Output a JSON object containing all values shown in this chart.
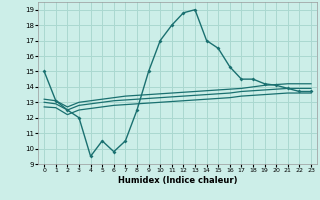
{
  "x": [
    0,
    1,
    2,
    3,
    4,
    5,
    6,
    7,
    8,
    9,
    10,
    11,
    12,
    13,
    14,
    15,
    16,
    17,
    18,
    19,
    20,
    21,
    22,
    23
  ],
  "line_main": [
    15,
    13.1,
    12.5,
    12.0,
    9.5,
    10.5,
    9.8,
    10.5,
    12.5,
    15.0,
    17.0,
    18.0,
    18.8,
    19.0,
    17.0,
    16.5,
    15.3,
    14.5,
    14.5,
    14.2,
    14.1,
    13.9,
    13.7,
    13.7
  ],
  "line_hi": [
    13.2,
    13.1,
    12.7,
    13.0,
    13.1,
    13.2,
    13.3,
    13.4,
    13.45,
    13.5,
    13.55,
    13.6,
    13.65,
    13.7,
    13.75,
    13.8,
    13.85,
    13.9,
    14.0,
    14.1,
    14.15,
    14.2,
    14.2,
    14.2
  ],
  "line_mid": [
    13.0,
    12.9,
    12.5,
    12.8,
    12.9,
    13.0,
    13.1,
    13.15,
    13.2,
    13.25,
    13.3,
    13.35,
    13.4,
    13.45,
    13.5,
    13.55,
    13.6,
    13.7,
    13.75,
    13.8,
    13.85,
    13.9,
    13.9,
    13.9
  ],
  "line_lo": [
    12.7,
    12.65,
    12.2,
    12.5,
    12.6,
    12.7,
    12.8,
    12.85,
    12.9,
    12.95,
    13.0,
    13.05,
    13.1,
    13.15,
    13.2,
    13.25,
    13.3,
    13.4,
    13.45,
    13.5,
    13.55,
    13.6,
    13.6,
    13.6
  ],
  "bg_color": "#cceee8",
  "grid_color": "#aad8d0",
  "line_color": "#1a7070",
  "xlabel": "Humidex (Indice chaleur)",
  "ylim": [
    9,
    19.5
  ],
  "xlim": [
    -0.5,
    23.5
  ],
  "yticks": [
    9,
    10,
    11,
    12,
    13,
    14,
    15,
    16,
    17,
    18,
    19
  ],
  "xticks": [
    0,
    1,
    2,
    3,
    4,
    5,
    6,
    7,
    8,
    9,
    10,
    11,
    12,
    13,
    14,
    15,
    16,
    17,
    18,
    19,
    20,
    21,
    22,
    23
  ]
}
